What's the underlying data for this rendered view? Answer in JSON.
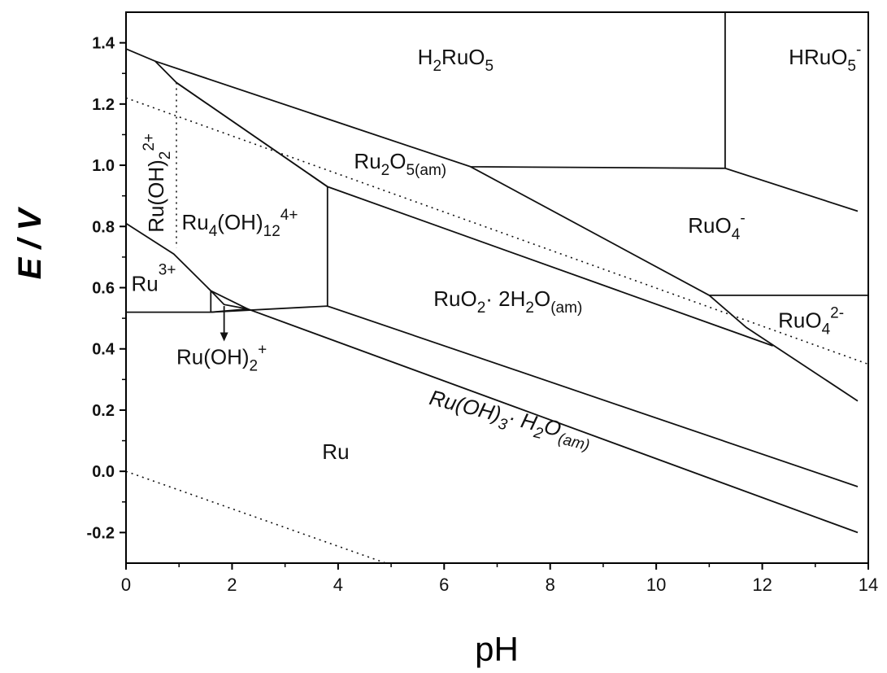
{
  "chart_data": {
    "type": "line",
    "xlabel": "pH",
    "ylabel": "E / V",
    "xlim": [
      0,
      14
    ],
    "ylim": [
      -0.3,
      1.5
    ],
    "x_ticks": [
      "0",
      "2",
      "4",
      "6",
      "8",
      "10",
      "12",
      "14"
    ],
    "y_ticks": [
      "-0.2",
      "0.0",
      "0.2",
      "0.4",
      "0.6",
      "0.8",
      "1.0",
      "1.2",
      "1.4"
    ],
    "boundaries": [
      {
        "points": [
          [
            0,
            1.38
          ],
          [
            0.55,
            1.34
          ],
          [
            6.5,
            0.995
          ],
          [
            11.3,
            0.99
          ],
          [
            13.8,
            0.85
          ]
        ]
      },
      {
        "points": [
          [
            0.55,
            1.34
          ],
          [
            0.95,
            1.27
          ],
          [
            3.8,
            0.93
          ],
          [
            12.2,
            0.41
          ]
        ]
      },
      {
        "points": [
          [
            0.95,
            1.27
          ],
          [
            3.8,
            0.93
          ]
        ]
      },
      {
        "points": [
          [
            3.8,
            0.93
          ],
          [
            3.8,
            0.54
          ]
        ]
      },
      {
        "points": [
          [
            0,
            0.81
          ],
          [
            0.9,
            0.71
          ],
          [
            1.6,
            0.59
          ],
          [
            1.85,
            0.545
          ],
          [
            2.3,
            0.53
          ],
          [
            13.8,
            -0.2
          ]
        ]
      },
      {
        "points": [
          [
            0,
            0.52
          ],
          [
            1.6,
            0.52
          ],
          [
            3.8,
            0.54
          ],
          [
            13.8,
            -0.05
          ]
        ]
      },
      {
        "points": [
          [
            11.3,
            1.5
          ],
          [
            11.3,
            0.99
          ]
        ]
      },
      {
        "points": [
          [
            11.0,
            0.575
          ],
          [
            14,
            0.575
          ]
        ]
      },
      {
        "points": [
          [
            11.0,
            0.575
          ],
          [
            11.7,
            0.47
          ],
          [
            13.8,
            0.23
          ]
        ]
      },
      {
        "points": [
          [
            11.0,
            0.575
          ],
          [
            6.5,
            0.995
          ]
        ]
      },
      {
        "points": [
          [
            1.6,
            0.59
          ],
          [
            1.6,
            0.52
          ]
        ]
      },
      {
        "points": [
          [
            1.6,
            0.59
          ],
          [
            2.3,
            0.53
          ]
        ]
      },
      {
        "points": [
          [
            1.6,
            0.52
          ],
          [
            2.3,
            0.53
          ]
        ]
      }
    ],
    "dotted_lines": [
      {
        "points": [
          [
            0,
            1.22
          ],
          [
            14,
            0.35
          ]
        ]
      },
      {
        "points": [
          [
            0,
            0.0
          ],
          [
            4.9,
            -0.3
          ]
        ]
      },
      {
        "points": [
          [
            0.95,
            1.27
          ],
          [
            0.95,
            0.73
          ]
        ]
      }
    ],
    "arrow": {
      "from": [
        1.85,
        0.54
      ],
      "to": [
        1.85,
        0.43
      ]
    },
    "regions": [
      {
        "base": "H",
        "sub1": "2",
        "mid": "RuO",
        "sub2": "5",
        "at": [
          5.5,
          1.33
        ]
      },
      {
        "base": "HRuO",
        "sub1": "5",
        "sup": "-",
        "at": [
          12.5,
          1.33
        ]
      },
      {
        "base": "Ru",
        "sub1": "2",
        "mid": "O",
        "sub2": "5(am)",
        "at": [
          4.3,
          0.99
        ]
      },
      {
        "base": "RuO",
        "sup": "-",
        "sub1": "4",
        "at": [
          10.6,
          0.78
        ]
      },
      {
        "base": "Ru",
        "sub1": "4",
        "mid": "(OH)",
        "sub2": "12",
        "sup": "4+",
        "at": [
          1.05,
          0.79
        ]
      },
      {
        "base": "Ru",
        "sup": "3+",
        "at": [
          0.1,
          0.59
        ]
      },
      {
        "base": "RuO",
        "sub1": "2",
        "mid": "· 2H",
        "sub2": "2",
        "tail": "O",
        "sub3": "(am)",
        "at": [
          5.8,
          0.54
        ]
      },
      {
        "base": "RuO",
        "sub1": "4",
        "sup": "2-",
        "at": [
          12.3,
          0.47
        ]
      },
      {
        "base": "Ru(OH)",
        "sub1": "2",
        "sup": "+",
        "at": [
          0.95,
          0.35
        ]
      },
      {
        "base": "Ru(OH)",
        "sub1": "3",
        "mid": "· H",
        "sub2": "2",
        "tail": "O",
        "sub3": "(am)",
        "at": [
          5.7,
          0.22
        ],
        "italic": true
      },
      {
        "base": "Ru",
        "at": [
          3.7,
          0.04
        ]
      },
      {
        "base": "Ru(OH)",
        "sub1": "2",
        "sup": "2+",
        "at": [
          0.55,
          0.78
        ],
        "vertical": true
      }
    ]
  }
}
